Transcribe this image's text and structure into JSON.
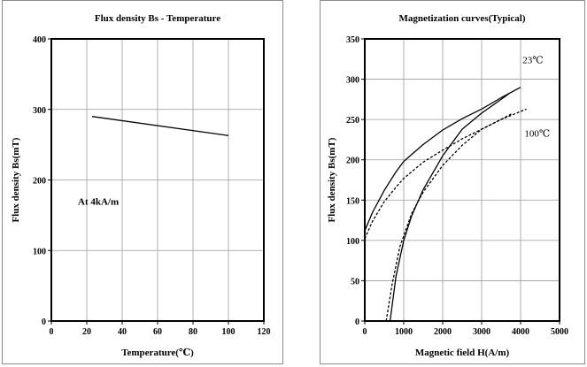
{
  "chart_data": [
    {
      "type": "line",
      "title": "Flux density Bs - Temperature",
      "xlabel": "Temperature(℃)",
      "ylabel": "Flux density Bs(mT)",
      "xlim": [
        0,
        120
      ],
      "ylim": [
        0,
        400
      ],
      "xticks": [
        0,
        20,
        40,
        60,
        80,
        100,
        120
      ],
      "yticks": [
        0,
        100,
        200,
        300,
        400
      ],
      "grid": true,
      "annotation": {
        "text": "At 4kA/m",
        "x": 15,
        "y": 165
      },
      "series": [
        {
          "x": [
            23,
            100
          ],
          "y": [
            290,
            263
          ],
          "style": "solid"
        }
      ]
    },
    {
      "type": "line",
      "title": "Magnetization curves(Typical)",
      "xlabel": "Magnetic field H(A/m)",
      "ylabel": "Flux density Bs(mT)",
      "xlim": [
        0,
        5000
      ],
      "ylim": [
        0,
        350
      ],
      "xticks": [
        0,
        1000,
        2000,
        3000,
        4000,
        5000
      ],
      "yticks": [
        0,
        50,
        100,
        150,
        200,
        250,
        300,
        350
      ],
      "grid": true,
      "annotations": [
        {
          "text": "23℃",
          "x": 4050,
          "y": 320
        },
        {
          "text": "100℃",
          "x": 4100,
          "y": 229
        }
      ],
      "series": [
        {
          "style": "solid",
          "x": [
            0,
            200,
            500,
            800,
            1000,
            1500,
            2000,
            2500,
            3000,
            3500,
            4000
          ],
          "y": [
            112,
            135,
            162,
            185,
            198,
            219,
            237,
            251,
            263,
            277,
            290
          ]
        },
        {
          "style": "solid",
          "x": [
            650,
            800,
            1000,
            1200,
            1500,
            2000,
            2500,
            3000,
            3500,
            3700
          ],
          "y": [
            0,
            55,
            100,
            130,
            163,
            205,
            238,
            258,
            275,
            282
          ]
        },
        {
          "style": "dashed",
          "x": [
            0,
            200,
            500,
            800,
            1000,
            1500,
            2000,
            2500,
            3000,
            3500,
            4000,
            4150
          ],
          "y": [
            102,
            124,
            148,
            166,
            177,
            197,
            212,
            226,
            238,
            250,
            260,
            263
          ]
        },
        {
          "style": "dashed",
          "x": [
            550,
            700,
            900,
            1200,
            1500,
            2000,
            2500,
            3000,
            3500,
            3800
          ],
          "y": [
            0,
            45,
            92,
            133,
            160,
            193,
            218,
            238,
            250,
            258
          ]
        }
      ]
    }
  ]
}
